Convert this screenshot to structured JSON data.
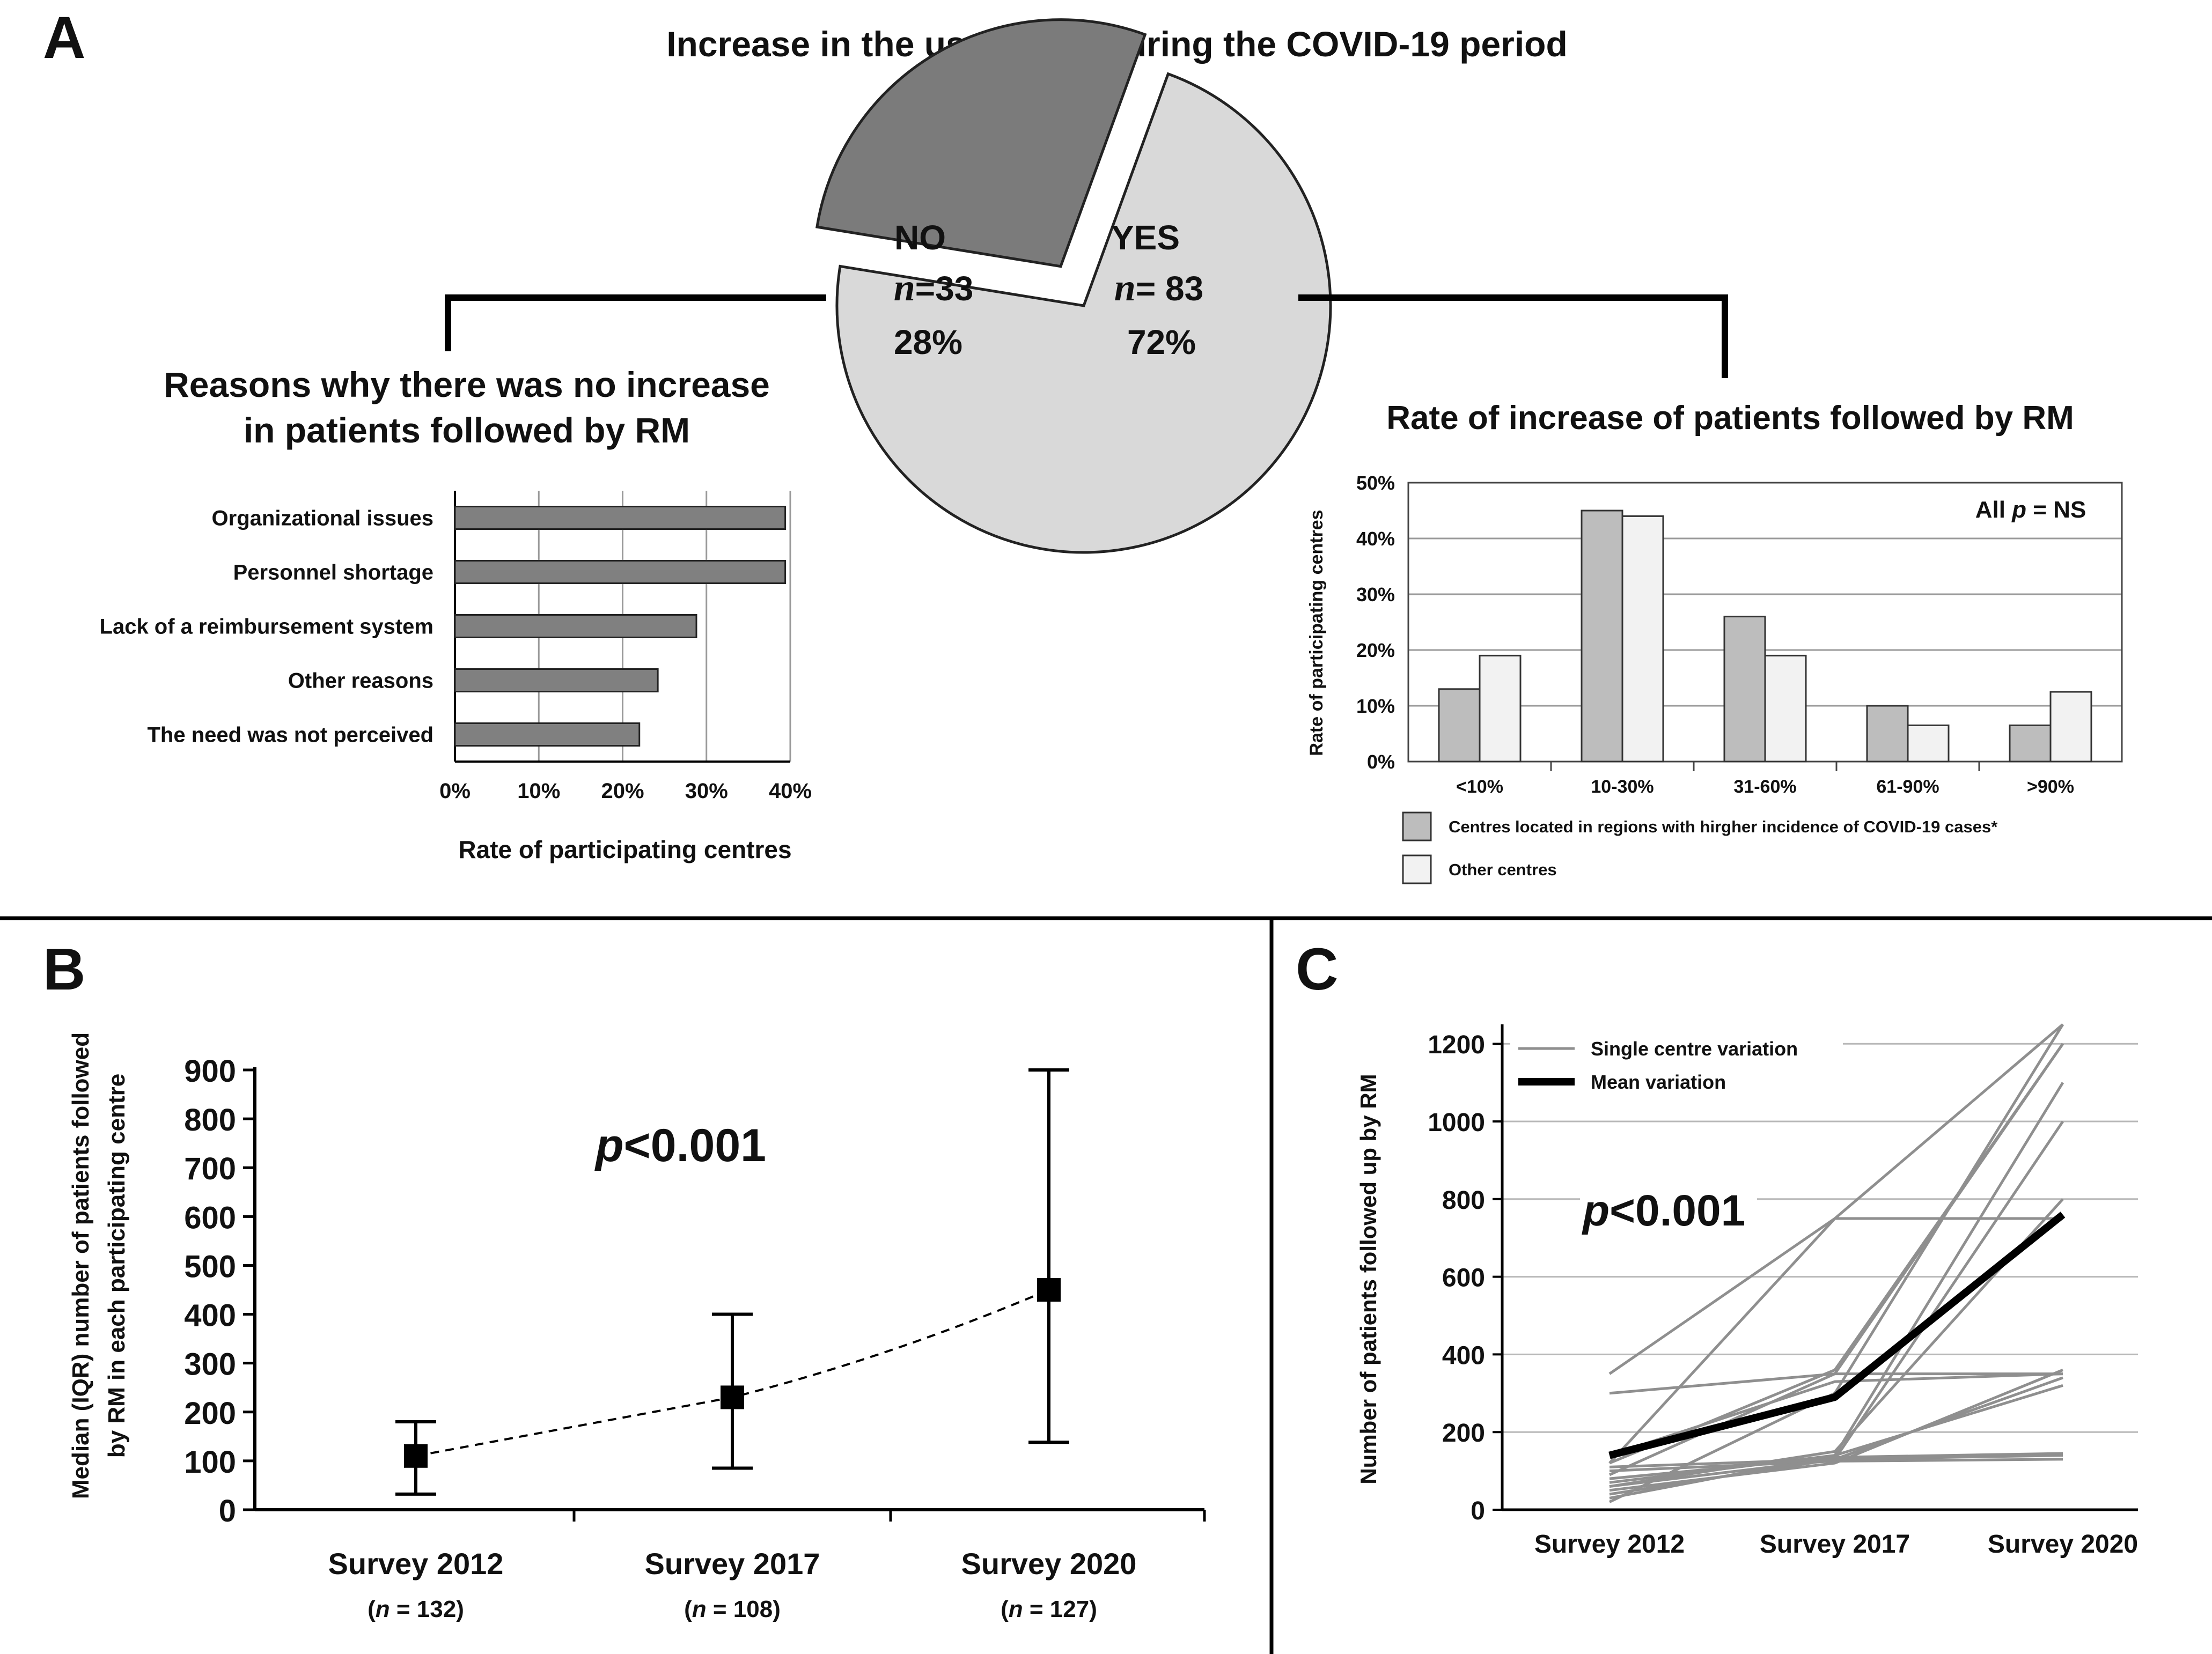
{
  "panels": {
    "a": {
      "letter": "A",
      "title": "Increase in the use of RM during the COVID-19 period"
    },
    "b": {
      "letter": "B"
    },
    "c": {
      "letter": "C"
    }
  },
  "pie": {
    "no": {
      "label": "NO",
      "n_symbol": "n",
      "n_text": "=33",
      "pct": "28%",
      "value": 28
    },
    "yes": {
      "label": "YES",
      "n_symbol": "n",
      "n_text": "= 83",
      "pct": "72%",
      "value": 72
    }
  },
  "colors": {
    "dark_gray": "#7b7b7b",
    "light_gray": "#d9d9d9",
    "bar_gray": "#808080",
    "mid_gray": "#bdbdbd",
    "pale": "#f2f2f2",
    "line_gray": "#8f8f8f",
    "black": "#000000"
  },
  "chart_data": [
    {
      "type": "pie",
      "title": "Increase in the use of RM during the COVID-19 period",
      "categories": [
        "NO",
        "YES"
      ],
      "values": [
        28,
        72
      ],
      "counts": [
        33,
        83
      ]
    },
    {
      "type": "bar",
      "orientation": "horizontal",
      "title_line1": "Reasons why there was no increase",
      "title_line2": "in patients followed by RM",
      "categories": [
        "Organizational issues",
        "Personnel shortage",
        "Lack of a reimbursement system",
        "Other reasons",
        "The need was not perceived"
      ],
      "values": [
        39.4,
        39.4,
        28.8,
        24.2,
        22.0
      ],
      "xlabel": "Rate of participating centres",
      "xticks": [
        "0%",
        "10%",
        "20%",
        "30%",
        "40%"
      ],
      "xlim": [
        0,
        40
      ]
    },
    {
      "type": "bar",
      "title": "Rate of increase of patients followed by RM",
      "categories": [
        "<10%",
        "10-30%",
        "31-60%",
        "61-90%",
        ">90%"
      ],
      "series": [
        {
          "name": "Centres located in regions with hirgher incidence of COVID-19 cases*",
          "values": [
            13,
            45,
            26,
            10,
            6.5
          ]
        },
        {
          "name": "Other centres",
          "values": [
            19,
            44,
            19,
            6.5,
            12.5
          ]
        }
      ],
      "ylabel": "Rate of participating centres",
      "yticks": [
        "0%",
        "10%",
        "20%",
        "30%",
        "40%",
        "50%"
      ],
      "ylim": [
        0,
        50
      ],
      "annotation": {
        "prefix": "All ",
        "p": "p",
        "suffix": " = NS"
      }
    },
    {
      "type": "scatter",
      "subtype": "median-iqr",
      "categories": [
        "Survey 2012",
        "Survey 2017",
        "Survey 2020"
      ],
      "n_labels": [
        {
          "open": "(",
          "n": "n",
          "rest": " = 132)"
        },
        {
          "open": "(",
          "n": "n",
          "rest": " = 108)"
        },
        {
          "open": "(",
          "n": "n",
          "rest": " = 127)"
        }
      ],
      "median": [
        110,
        230,
        450
      ],
      "q1": [
        32,
        85,
        138
      ],
      "q3": [
        180,
        400,
        900
      ],
      "ylabel_line1": "Median (IQR) number of patients followed",
      "ylabel_line2": "by RM in each participating centre",
      "yticks": [
        "0",
        "100",
        "200",
        "300",
        "400",
        "500",
        "600",
        "700",
        "800",
        "900"
      ],
      "ylim": [
        0,
        900
      ],
      "annotation": {
        "p": "p",
        "rest": "<0.001"
      }
    },
    {
      "type": "line",
      "categories": [
        "Survey 2012",
        "Survey 2017",
        "Survey 2020"
      ],
      "series": [
        {
          "name": "Single centre variation",
          "values": [
            [
              350,
              750,
              1250
            ],
            [
              300,
              350,
              1200
            ],
            [
              120,
              750,
              750
            ],
            [
              90,
              350,
              350
            ],
            [
              70,
              140,
              1100
            ],
            [
              110,
              130,
              1000
            ],
            [
              60,
              150,
              800
            ],
            [
              50,
              120,
              360
            ],
            [
              40,
              130,
              340
            ],
            [
              30,
              140,
              320
            ],
            [
              100,
              125,
              130
            ],
            [
              80,
              135,
              145
            ],
            [
              60,
              130,
              140
            ],
            [
              120,
              360,
              1200
            ],
            [
              20,
              300,
              1250
            ],
            [
              140,
              330,
              350
            ]
          ]
        },
        {
          "name": "Mean variation",
          "values": [
            140,
            290,
            760
          ]
        }
      ],
      "ylabel": "Number of patients followed up by RM",
      "yticks": [
        "0",
        "200",
        "400",
        "600",
        "800",
        "1000",
        "1200"
      ],
      "ylim": [
        0,
        1250
      ],
      "annotation": {
        "p": "p",
        "rest": "<0.001"
      }
    }
  ]
}
